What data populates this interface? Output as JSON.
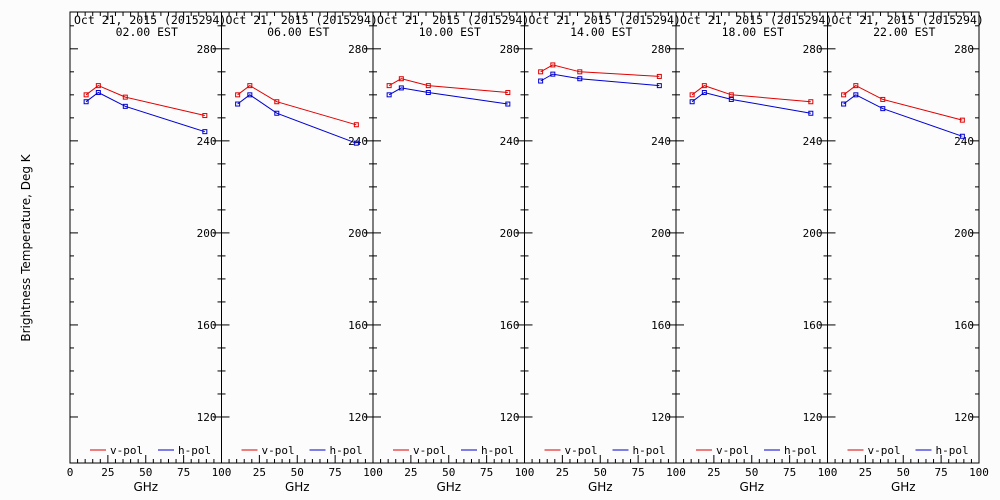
{
  "chart_data": {
    "type": "line",
    "ylabel": "Brightness Temperature, Deg K",
    "xlabel": "GHz",
    "x_ticks": [
      0,
      25,
      50,
      75,
      100
    ],
    "y_ticks": [
      120,
      160,
      200,
      240,
      280
    ],
    "xlim": [
      0,
      100
    ],
    "ylim": [
      100,
      296
    ],
    "x": [
      10.65,
      18.7,
      36.5,
      89.0
    ],
    "colors": {
      "v": "#e00000",
      "h": "#0000d0"
    },
    "legend": {
      "v": "v-pol",
      "h": "h-pol"
    },
    "panels": [
      {
        "title_date": "Oct 21, 2015 (2015294)",
        "title_time": "02.00 EST",
        "series": [
          {
            "name": "v-pol",
            "key": "v",
            "values": [
              260,
              264,
              259,
              251
            ]
          },
          {
            "name": "h-pol",
            "key": "h",
            "values": [
              257,
              261,
              255,
              244
            ]
          }
        ]
      },
      {
        "title_date": "Oct 21, 2015 (2015294)",
        "title_time": "06.00 EST",
        "series": [
          {
            "name": "v-pol",
            "key": "v",
            "values": [
              260,
              264,
              257,
              247
            ]
          },
          {
            "name": "h-pol",
            "key": "h",
            "values": [
              256,
              260,
              252,
              239
            ]
          }
        ]
      },
      {
        "title_date": "Oct 21, 2015 (2015294)",
        "title_time": "10.00 EST",
        "series": [
          {
            "name": "v-pol",
            "key": "v",
            "values": [
              264,
              267,
              264,
              261
            ]
          },
          {
            "name": "h-pol",
            "key": "h",
            "values": [
              260,
              263,
              261,
              256
            ]
          }
        ]
      },
      {
        "title_date": "Oct 21, 2015 (2015294)",
        "title_time": "14.00 EST",
        "series": [
          {
            "name": "v-pol",
            "key": "v",
            "values": [
              270,
              273,
              270,
              268
            ]
          },
          {
            "name": "h-pol",
            "key": "h",
            "values": [
              266,
              269,
              267,
              264
            ]
          }
        ]
      },
      {
        "title_date": "Oct 21, 2015 (2015294)",
        "title_time": "18.00 EST",
        "series": [
          {
            "name": "v-pol",
            "key": "v",
            "values": [
              260,
              264,
              260,
              257
            ]
          },
          {
            "name": "h-pol",
            "key": "h",
            "values": [
              257,
              261,
              258,
              252
            ]
          }
        ]
      },
      {
        "title_date": "Oct 21, 2015 (2015294)",
        "title_time": "22.00 EST",
        "series": [
          {
            "name": "v-pol",
            "key": "v",
            "values": [
              260,
              264,
              258,
              249
            ]
          },
          {
            "name": "h-pol",
            "key": "h",
            "values": [
              256,
              260,
              254,
              242
            ]
          }
        ]
      }
    ]
  }
}
